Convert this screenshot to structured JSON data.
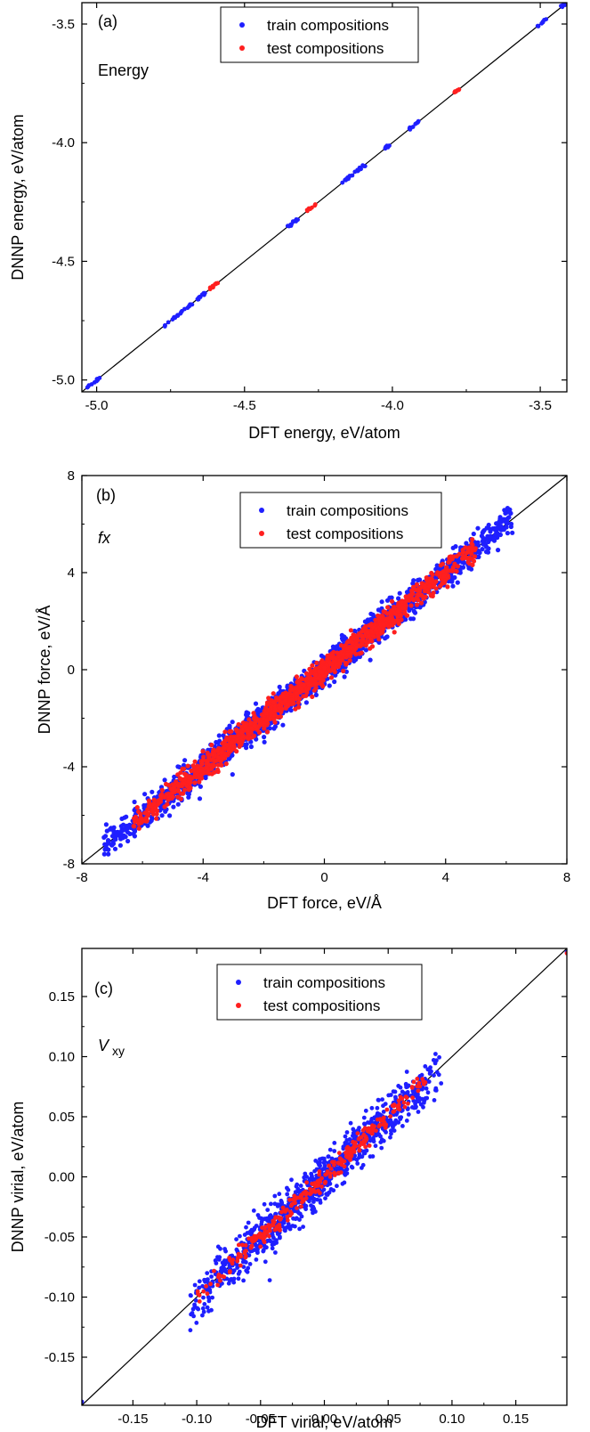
{
  "chart_data": [
    {
      "type": "scatter",
      "panel_label": "(a)",
      "annotation": "Energy",
      "xlabel": "DFT energy, eV/atom",
      "ylabel": "DNNP energy, eV/atom",
      "xlim": [
        -5.05,
        -3.41
      ],
      "ylim": [
        -5.05,
        -3.41
      ],
      "xticks": [
        -5.0,
        -4.5,
        -4.0,
        -3.5
      ],
      "yticks": [
        -5.0,
        -4.5,
        -4.0,
        -3.5
      ],
      "xtick_labels": [
        "-5.0",
        "-4.5",
        "-4.0",
        "-3.5"
      ],
      "ytick_labels": [
        "-5.0",
        "-4.5",
        "-4.0",
        "-3.5"
      ],
      "legend_position": "top-center",
      "diagonal": true,
      "series": [
        {
          "name": "train compositions",
          "color": "#1f1fff",
          "clusters": [
            {
              "min": -5.04,
              "max": -4.99
            },
            {
              "min": -4.77,
              "max": -4.63
            },
            {
              "min": -4.36,
              "max": -4.31
            },
            {
              "min": -4.18,
              "max": -4.09
            },
            {
              "min": -4.03,
              "max": -4.01
            },
            {
              "min": -3.95,
              "max": -3.91
            },
            {
              "min": -3.51,
              "max": -3.48
            },
            {
              "min": -3.43,
              "max": -3.41
            }
          ]
        },
        {
          "name": "test compositions",
          "color": "#ff1f1f",
          "clusters": [
            {
              "min": -4.62,
              "max": -4.59
            },
            {
              "min": -4.29,
              "max": -4.26
            },
            {
              "min": -3.79,
              "max": -3.77
            }
          ]
        }
      ]
    },
    {
      "type": "scatter",
      "panel_label": "(b)",
      "annotation": "fx",
      "xlabel": "DFT force, eV/Å",
      "ylabel": "DNNP force, eV/Å",
      "xlim": [
        -8,
        8
      ],
      "ylim": [
        -8,
        8
      ],
      "xticks": [
        -8,
        -4,
        0,
        4,
        8
      ],
      "yticks": [
        -8,
        -4,
        0,
        4,
        8
      ],
      "xtick_labels": [
        "-8",
        "-4",
        "0",
        "4",
        "8"
      ],
      "ytick_labels": [
        "-8",
        "-4",
        "0",
        "4",
        "8"
      ],
      "legend_position": "top-center",
      "diagonal": true,
      "series": [
        {
          "name": "train compositions",
          "color": "#1f1fff",
          "range": [
            -7.3,
            6.2
          ],
          "spread": 0.32
        },
        {
          "name": "test compositions",
          "color": "#ff1f1f",
          "range": [
            -6.3,
            5.0
          ],
          "spread": 0.25
        }
      ]
    },
    {
      "type": "scatter",
      "panel_label": "(c)",
      "annotation_main": "V",
      "annotation_sub": "xy",
      "xlabel": "DFT virial, eV/atom",
      "ylabel": "DNNP virial, eV/atom",
      "xlim": [
        -0.19,
        0.19
      ],
      "ylim": [
        -0.19,
        0.19
      ],
      "xticks": [
        -0.15,
        -0.1,
        -0.05,
        0.0,
        0.05,
        0.1,
        0.15
      ],
      "yticks": [
        -0.15,
        -0.1,
        -0.05,
        0.0,
        0.05,
        0.1,
        0.15
      ],
      "xtick_labels": [
        "-0.15",
        "-0.10",
        "-0.05",
        "0.00",
        "0.05",
        "0.10",
        "0.15"
      ],
      "ytick_labels": [
        "-0.15",
        "-0.10",
        "-0.05",
        "0.00",
        "0.05",
        "0.10",
        "0.15"
      ],
      "legend_position": "top-center",
      "diagonal": true,
      "series": [
        {
          "name": "train compositions",
          "color": "#1f1fff",
          "range": [
            -0.105,
            0.092
          ],
          "spread": 0.009,
          "outliers": [
            [
              -0.19,
              -0.187
            ],
            [
              0.19,
              0.187
            ]
          ]
        },
        {
          "name": "test compositions",
          "color": "#ff1f1f",
          "range": [
            -0.1,
            0.08
          ],
          "spread": 0.004,
          "outliers": [
            [
              0.19,
              0.186
            ]
          ]
        }
      ]
    }
  ]
}
